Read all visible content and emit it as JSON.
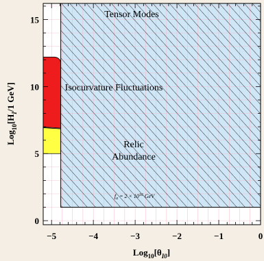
{
  "chart_data": {
    "type": "area",
    "xlabel": "Log",
    "xlabel_sub": "10",
    "xlabel_rest": "[θ",
    "xlabel_sub2": "I0",
    "xlabel_end": "]",
    "ylabel": "Log",
    "ylabel_sub": "10",
    "ylabel_mid": "[H",
    "ylabel_sub2": "I",
    "ylabel_end": "/1 GeV]",
    "xlim": [
      -5.2,
      0
    ],
    "ylim": [
      -0.3,
      16.2
    ],
    "x_ticks": [
      -5,
      -4,
      -3,
      -2,
      -1,
      0
    ],
    "x_tick_labels": [
      "−5",
      "−4",
      "−3",
      "−2",
      "−1",
      "0"
    ],
    "y_ticks": [
      0,
      5,
      10,
      15
    ],
    "y_tick_labels": [
      "0",
      "5",
      "10",
      "15"
    ],
    "grid": true,
    "regions": [
      {
        "name": "hatched-excluded",
        "color": "#cfe6f7",
        "hatch": true,
        "boundary": {
          "x_left": -4.78,
          "y_floor": 1.0
        }
      },
      {
        "name": "allowed-red",
        "color": "#ee1c1c",
        "x_range": [
          -5.2,
          -4.78
        ],
        "y_range": [
          7.0,
          12.2
        ]
      },
      {
        "name": "allowed-yellow",
        "color": "#ffff44",
        "x_range": [
          -5.2,
          -4.78
        ],
        "y_range": [
          5.0,
          7.0
        ]
      }
    ],
    "annotations": [
      {
        "text": "Tensor Modes",
        "x": -3.2,
        "y": 15.5
      },
      {
        "text": "Isocurvature Fluctuations",
        "x": -3.5,
        "y": 9.9
      },
      {
        "text": "Relic",
        "x": -2.9,
        "y": 5.8
      },
      {
        "text": "Abundance",
        "x": -2.9,
        "y": 4.7
      },
      {
        "text": "f_a = 2 × 10^16 GeV",
        "x": -2.9,
        "y": 2.0
      }
    ]
  },
  "labels": {
    "tensor": "Tensor Modes",
    "iso": "Isocurvature Fluctuations",
    "relic1": "Relic",
    "relic2": "Abundance",
    "fa": "f",
    "fa_sub": "a",
    "fa_rest": " = 2 × 10",
    "fa_exp": "16",
    "fa_unit": " GeV"
  }
}
